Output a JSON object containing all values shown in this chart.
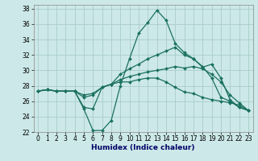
{
  "xlabel": "Humidex (Indice chaleur)",
  "xlim": [
    -0.5,
    23.5
  ],
  "ylim": [
    22,
    38.5
  ],
  "yticks": [
    22,
    24,
    26,
    28,
    30,
    32,
    34,
    36,
    38
  ],
  "xticks": [
    0,
    1,
    2,
    3,
    4,
    5,
    6,
    7,
    8,
    9,
    10,
    11,
    12,
    13,
    14,
    15,
    16,
    17,
    18,
    19,
    20,
    21,
    22,
    23
  ],
  "bg_color": "#cce8e8",
  "grid_color": "#aacccc",
  "line_color": "#1a7060",
  "lines": [
    [
      27.3,
      27.5,
      27.3,
      27.3,
      27.3,
      25.0,
      22.2,
      22.2,
      23.5,
      28.0,
      31.5,
      34.8,
      36.2,
      37.8,
      36.5,
      33.5,
      32.3,
      31.5,
      30.4,
      30.8,
      29.0,
      26.2,
      25.2,
      24.8
    ],
    [
      27.3,
      27.5,
      27.3,
      27.3,
      27.3,
      25.2,
      25.0,
      27.8,
      28.2,
      29.5,
      30.2,
      30.8,
      31.5,
      32.0,
      32.5,
      33.0,
      32.0,
      31.5,
      30.5,
      29.0,
      26.5,
      26.0,
      25.2,
      24.8
    ],
    [
      27.3,
      27.5,
      27.3,
      27.3,
      27.3,
      26.5,
      26.8,
      27.8,
      28.2,
      28.8,
      29.2,
      29.5,
      29.8,
      30.0,
      30.2,
      30.5,
      30.3,
      30.5,
      30.2,
      29.5,
      28.5,
      26.8,
      25.8,
      24.8
    ],
    [
      27.3,
      27.5,
      27.3,
      27.3,
      27.3,
      26.8,
      27.0,
      27.8,
      28.2,
      28.5,
      28.5,
      28.8,
      29.0,
      29.0,
      28.5,
      27.8,
      27.2,
      27.0,
      26.5,
      26.2,
      26.0,
      25.8,
      25.5,
      24.8
    ]
  ]
}
